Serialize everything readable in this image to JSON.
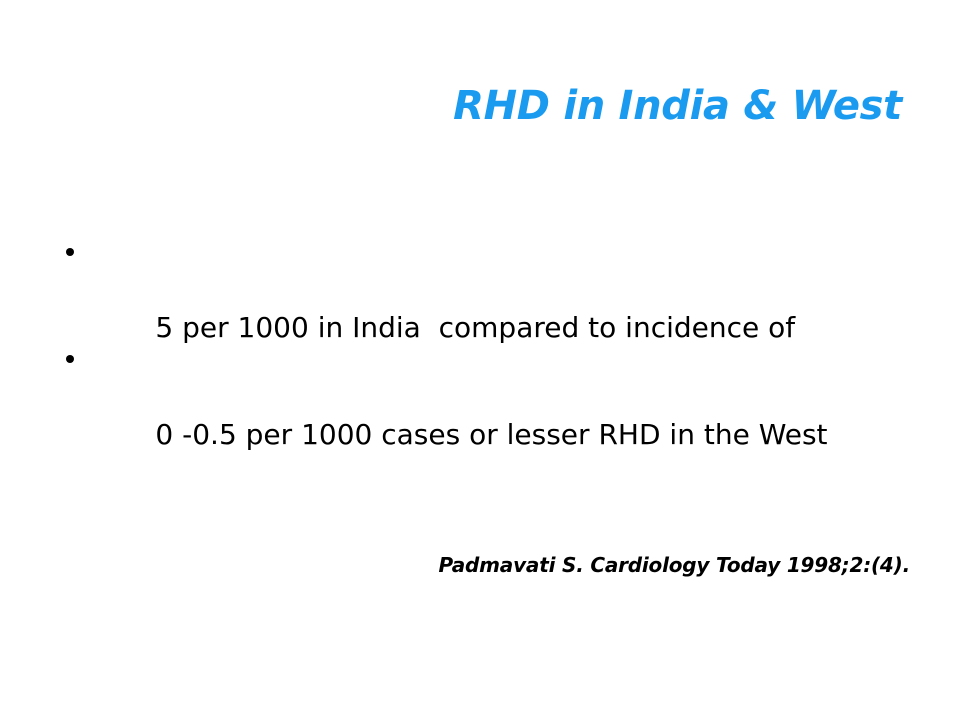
{
  "slide": {
    "title": "RHD in India & West",
    "bullets": [
      "5 per 1000 in India  compared to incidence of",
      "0 -0.5 per 1000 cases or lesser RHD in the West"
    ],
    "citation": "Padmavati S. Cardiology Today 1998;2:(4).",
    "colors": {
      "title": "#1a9bf0",
      "text": "#000000",
      "background": "#ffffff"
    }
  }
}
